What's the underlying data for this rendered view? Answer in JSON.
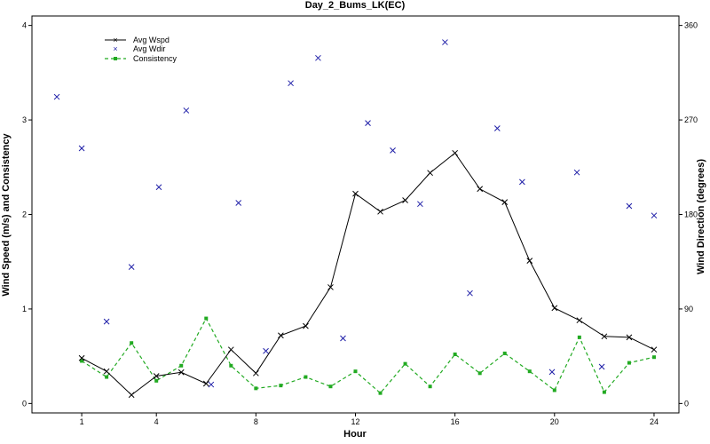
{
  "chart_data": {
    "type": "line",
    "title": "Day_2_Bums_LK(EC)",
    "xlabel": "Hour",
    "ylabel": "Wind Speed (m/s) and Consistency",
    "y2label": "Wind Direction (degrees)",
    "xlim": [
      -1,
      25
    ],
    "ylim": [
      -0.1,
      4.1
    ],
    "y2lim": [
      -9,
      369
    ],
    "xticks": [
      1,
      4,
      8,
      12,
      16,
      20,
      24
    ],
    "yticks": [
      0,
      1,
      2,
      3,
      4
    ],
    "y2ticks": [
      0,
      90,
      180,
      270,
      360
    ],
    "grid": false,
    "legend_position": "top-left",
    "series": [
      {
        "name": "Avg Wspd",
        "axis": "left",
        "style": "line-x",
        "color": "#000000",
        "x": [
          1,
          2,
          3,
          4,
          5,
          6,
          7,
          8,
          9,
          10,
          11,
          12,
          13,
          14,
          15,
          16,
          17,
          18,
          19,
          20,
          21,
          22,
          23,
          24
        ],
        "y": [
          0.48,
          0.34,
          0.09,
          0.29,
          0.33,
          0.21,
          0.57,
          0.32,
          0.72,
          0.82,
          1.23,
          2.22,
          2.03,
          2.15,
          2.44,
          2.65,
          2.27,
          2.13,
          1.51,
          1.01,
          0.88,
          0.71,
          0.7,
          0.57
        ]
      },
      {
        "name": "Avg Wdir",
        "axis": "right",
        "style": "x-points",
        "color": "#1f1fa8",
        "x": [
          0.0,
          1.0,
          2.0,
          3.0,
          4.1,
          5.2,
          6.2,
          7.3,
          8.4,
          9.4,
          10.5,
          11.5,
          12.5,
          13.5,
          14.6,
          15.6,
          16.6,
          17.7,
          18.7,
          19.9,
          20.9,
          21.9,
          23.0,
          24.0
        ],
        "y": [
          292,
          243,
          78,
          130,
          206,
          279,
          18,
          191,
          50,
          305,
          329,
          62,
          267,
          241,
          190,
          344,
          105,
          262,
          211,
          30,
          220,
          35,
          188,
          179
        ]
      },
      {
        "name": "Consistency",
        "axis": "left",
        "style": "dashed-square",
        "color": "#22aa22",
        "x": [
          1,
          2,
          3,
          4,
          5,
          6,
          7,
          8,
          9,
          10,
          11,
          12,
          13,
          14,
          15,
          16,
          17,
          18,
          19,
          20,
          21,
          22,
          23,
          24
        ],
        "y": [
          0.45,
          0.28,
          0.64,
          0.24,
          0.4,
          0.9,
          0.4,
          0.16,
          0.19,
          0.28,
          0.18,
          0.34,
          0.11,
          0.42,
          0.18,
          0.52,
          0.32,
          0.53,
          0.34,
          0.14,
          0.7,
          0.12,
          0.43,
          0.49
        ]
      }
    ]
  }
}
